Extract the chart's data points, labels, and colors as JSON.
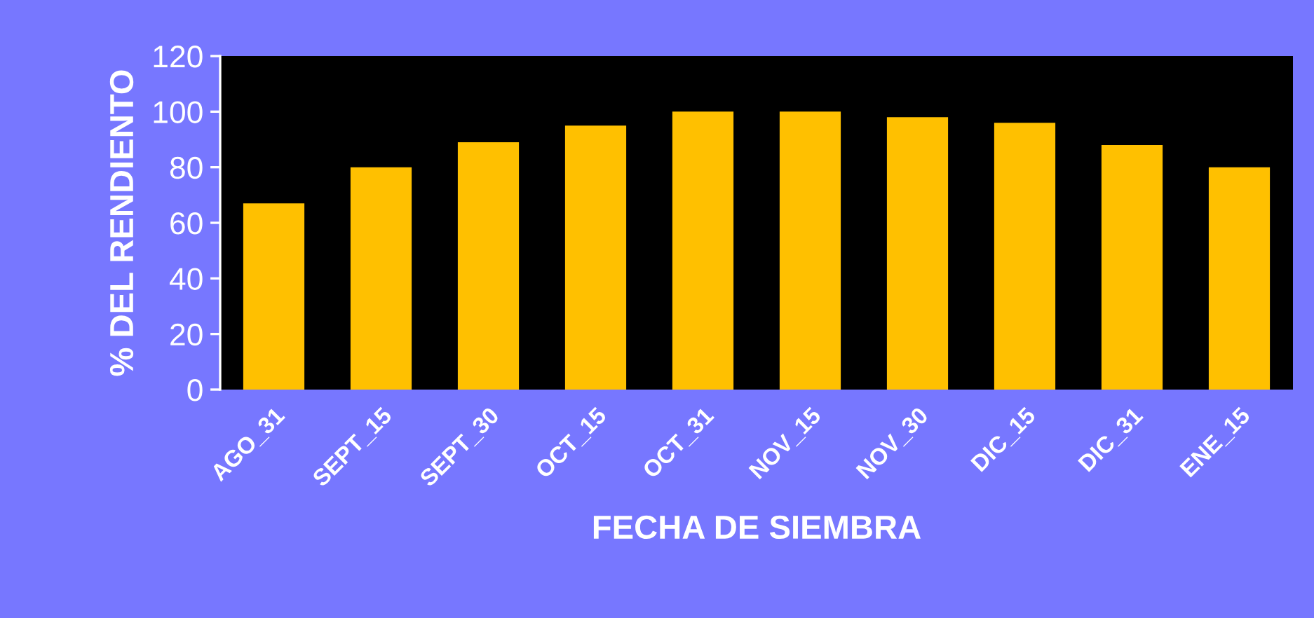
{
  "chart_data": {
    "type": "bar",
    "xlabel": "FECHA DE SIEMBRA",
    "ylabel": "% DEL RENDIENTO",
    "categories": [
      "AGO_31",
      "SEPT_15",
      "SEPT_30",
      "OCT_15",
      "OCT_31",
      "NOV_15",
      "NOV_30",
      "DIC_15",
      "DIC_31",
      "ENE_15"
    ],
    "values": [
      67,
      80,
      89,
      95,
      100,
      100,
      98,
      96,
      88,
      80
    ],
    "color": "#ffc000",
    "ylim": [
      0,
      120
    ],
    "yticks": [
      0,
      20,
      40,
      60,
      80,
      100,
      120
    ],
    "grid": false,
    "legend": false
  }
}
